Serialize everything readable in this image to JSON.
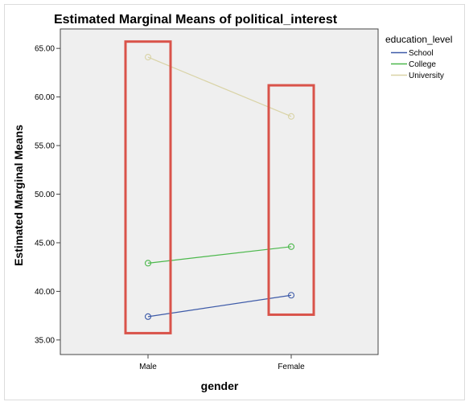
{
  "chart_data": {
    "type": "line",
    "title": "Estimated Marginal Means of political_interest",
    "xlabel": "gender",
    "ylabel": "Estimated Marginal Means",
    "categories": [
      "Male",
      "Female"
    ],
    "ylim": [
      33.5,
      67.0
    ],
    "yticks": [
      "35.00",
      "40.00",
      "45.00",
      "50.00",
      "55.00",
      "60.00",
      "65.00"
    ],
    "legend_title": "education_level",
    "legend_position": "right",
    "grid": false,
    "series": [
      {
        "name": "School",
        "values": [
          37.4,
          39.6
        ],
        "color": "#3d5aa8"
      },
      {
        "name": "College",
        "values": [
          42.9,
          44.6
        ],
        "color": "#4cb84c"
      },
      {
        "name": "University",
        "values": [
          64.1,
          58.0
        ],
        "color": "#d9d3a6"
      }
    ],
    "highlight_boxes": [
      {
        "category": "Male",
        "ymin": 35.7,
        "ymax": 65.7,
        "color": "#d9534a"
      },
      {
        "category": "Female",
        "ymin": 37.6,
        "ymax": 61.2,
        "color": "#d9534a"
      }
    ],
    "plot_background": "#efefef"
  }
}
